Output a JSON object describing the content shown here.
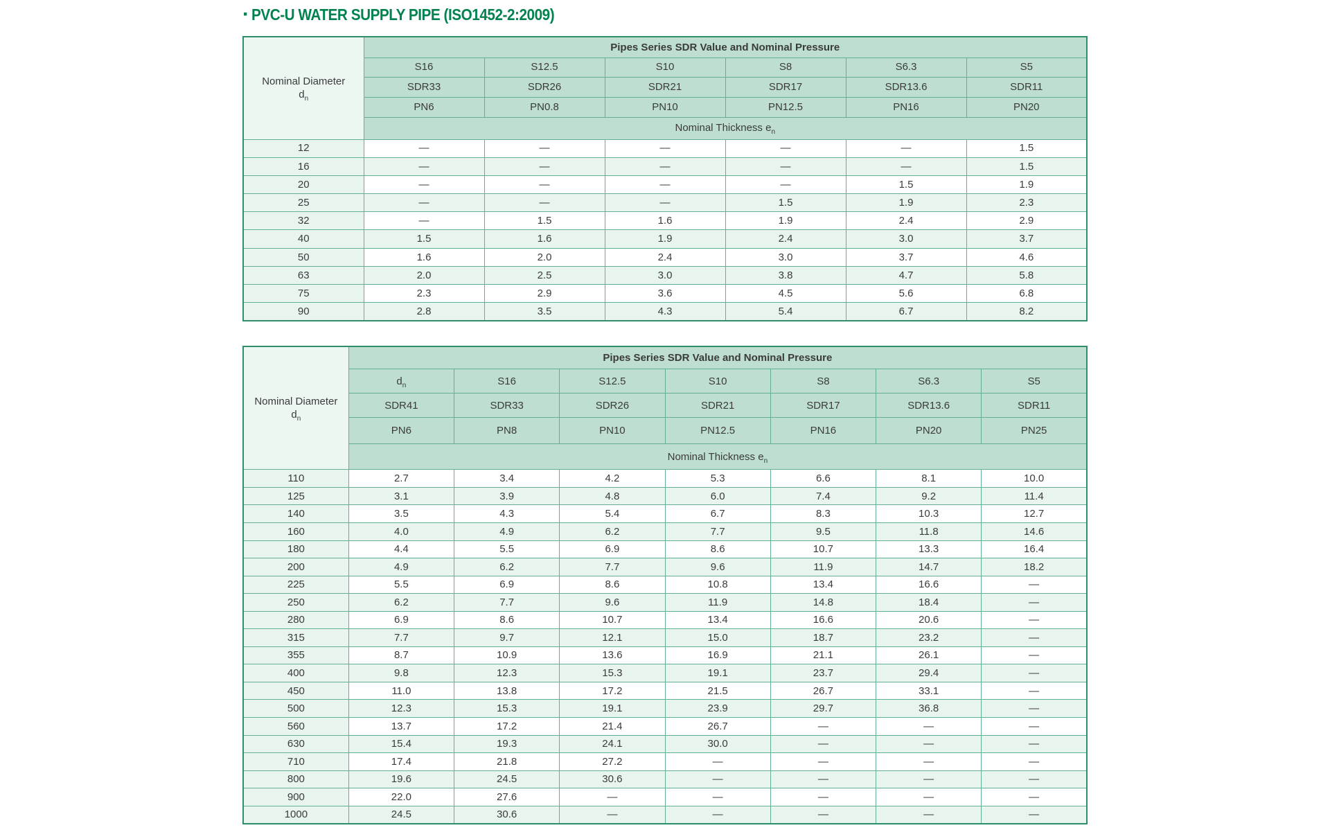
{
  "page": {
    "bullet": "·",
    "title": "PVC-U WATER SUPPLY PIPE (ISO1452-2:2009)"
  },
  "colors": {
    "title_green": "#00834F",
    "header_fill": "#BEDECF",
    "pale_fill": "#E8F4EE",
    "label_head_fill": "#EDF7F2",
    "border": "#63AF92",
    "border_dark": "#2F8E6A",
    "text": "#3B3B3B"
  },
  "tables": [
    {
      "name": "pipe-table-small-diameters",
      "band_title": "Pipes Series SDR Value and Nominal Pressure",
      "row_header_line1": "Nominal Diameter",
      "row_header_symbol": {
        "base": "d",
        "sub": "n"
      },
      "series": [
        {
          "base": "S16"
        },
        {
          "base": "S12.5"
        },
        {
          "base": "S10"
        },
        {
          "base": "S8"
        },
        {
          "base": "S6.3"
        },
        {
          "base": "S5"
        }
      ],
      "sdr": [
        "SDR33",
        "SDR26",
        "SDR21",
        "SDR17",
        "SDR13.6",
        "SDR11"
      ],
      "pn": [
        "PN6",
        "PN0.8",
        "PN10",
        "PN12.5",
        "PN16",
        "PN20"
      ],
      "thickness_label": {
        "base": "Nominal Thickness e",
        "sub": "n"
      },
      "rows": [
        {
          "dn": "12",
          "values": [
            "—",
            "—",
            "—",
            "—",
            "—",
            "1.5"
          ]
        },
        {
          "dn": "16",
          "values": [
            "—",
            "—",
            "—",
            "—",
            "—",
            "1.5"
          ]
        },
        {
          "dn": "20",
          "values": [
            "—",
            "—",
            "—",
            "—",
            "1.5",
            "1.9"
          ]
        },
        {
          "dn": "25",
          "values": [
            "—",
            "—",
            "—",
            "1.5",
            "1.9",
            "2.3"
          ]
        },
        {
          "dn": "32",
          "values": [
            "—",
            "1.5",
            "1.6",
            "1.9",
            "2.4",
            "2.9"
          ]
        },
        {
          "dn": "40",
          "values": [
            "1.5",
            "1.6",
            "1.9",
            "2.4",
            "3.0",
            "3.7"
          ]
        },
        {
          "dn": "50",
          "values": [
            "1.6",
            "2.0",
            "2.4",
            "3.0",
            "3.7",
            "4.6"
          ]
        },
        {
          "dn": "63",
          "values": [
            "2.0",
            "2.5",
            "3.0",
            "3.8",
            "4.7",
            "5.8"
          ]
        },
        {
          "dn": "75",
          "values": [
            "2.3",
            "2.9",
            "3.6",
            "4.5",
            "5.6",
            "6.8"
          ]
        },
        {
          "dn": "90",
          "values": [
            "2.8",
            "3.5",
            "4.3",
            "5.4",
            "6.7",
            "8.2"
          ]
        }
      ]
    },
    {
      "name": "pipe-table-large-diameters",
      "band_title": "Pipes Series SDR Value and Nominal Pressure",
      "row_header_line1": "Nominal Diameter",
      "row_header_symbol": {
        "base": "d",
        "sub": "n"
      },
      "series": [
        {
          "base": "d",
          "sub": "n"
        },
        {
          "base": "S16"
        },
        {
          "base": "S12.5"
        },
        {
          "base": "S10"
        },
        {
          "base": "S8"
        },
        {
          "base": "S6.3"
        },
        {
          "base": "S5"
        }
      ],
      "sdr": [
        "SDR41",
        "SDR33",
        "SDR26",
        "SDR21",
        "SDR17",
        "SDR13.6",
        "SDR11"
      ],
      "pn": [
        "PN6",
        "PN8",
        "PN10",
        "PN12.5",
        "PN16",
        "PN20",
        "PN25"
      ],
      "thickness_label": {
        "base": "Nominal Thickness e",
        "sub": "n"
      },
      "rows": [
        {
          "dn": "110",
          "values": [
            "2.7",
            "3.4",
            "4.2",
            "5.3",
            "6.6",
            "8.1",
            "10.0"
          ]
        },
        {
          "dn": "125",
          "values": [
            "3.1",
            "3.9",
            "4.8",
            "6.0",
            "7.4",
            "9.2",
            "11.4"
          ]
        },
        {
          "dn": "140",
          "values": [
            "3.5",
            "4.3",
            "5.4",
            "6.7",
            "8.3",
            "10.3",
            "12.7"
          ]
        },
        {
          "dn": "160",
          "values": [
            "4.0",
            "4.9",
            "6.2",
            "7.7",
            "9.5",
            "11.8",
            "14.6"
          ]
        },
        {
          "dn": "180",
          "values": [
            "4.4",
            "5.5",
            "6.9",
            "8.6",
            "10.7",
            "13.3",
            "16.4"
          ]
        },
        {
          "dn": "200",
          "values": [
            "4.9",
            "6.2",
            "7.7",
            "9.6",
            "11.9",
            "14.7",
            "18.2"
          ]
        },
        {
          "dn": "225",
          "values": [
            "5.5",
            "6.9",
            "8.6",
            "10.8",
            "13.4",
            "16.6",
            "—"
          ]
        },
        {
          "dn": "250",
          "values": [
            "6.2",
            "7.7",
            "9.6",
            "11.9",
            "14.8",
            "18.4",
            "—"
          ]
        },
        {
          "dn": "280",
          "values": [
            "6.9",
            "8.6",
            "10.7",
            "13.4",
            "16.6",
            "20.6",
            "—"
          ]
        },
        {
          "dn": "315",
          "values": [
            "7.7",
            "9.7",
            "12.1",
            "15.0",
            "18.7",
            "23.2",
            "—"
          ]
        },
        {
          "dn": "355",
          "values": [
            "8.7",
            "10.9",
            "13.6",
            "16.9",
            "21.1",
            "26.1",
            "—"
          ]
        },
        {
          "dn": "400",
          "values": [
            "9.8",
            "12.3",
            "15.3",
            "19.1",
            "23.7",
            "29.4",
            "—"
          ]
        },
        {
          "dn": "450",
          "values": [
            "11.0",
            "13.8",
            "17.2",
            "21.5",
            "26.7",
            "33.1",
            "—"
          ]
        },
        {
          "dn": "500",
          "values": [
            "12.3",
            "15.3",
            "19.1",
            "23.9",
            "29.7",
            "36.8",
            "—"
          ]
        },
        {
          "dn": "560",
          "values": [
            "13.7",
            "17.2",
            "21.4",
            "26.7",
            "—",
            "—",
            "—"
          ]
        },
        {
          "dn": "630",
          "values": [
            "15.4",
            "19.3",
            "24.1",
            "30.0",
            "—",
            "—",
            "—"
          ]
        },
        {
          "dn": "710",
          "values": [
            "17.4",
            "21.8",
            "27.2",
            "—",
            "—",
            "—",
            "—"
          ]
        },
        {
          "dn": "800",
          "values": [
            "19.6",
            "24.5",
            "30.6",
            "—",
            "—",
            "—",
            "—"
          ]
        },
        {
          "dn": "900",
          "values": [
            "22.0",
            "27.6",
            "—",
            "—",
            "—",
            "—",
            "—"
          ]
        },
        {
          "dn": "1000",
          "values": [
            "24.5",
            "30.6",
            "—",
            "—",
            "—",
            "—",
            "—"
          ]
        }
      ]
    }
  ]
}
